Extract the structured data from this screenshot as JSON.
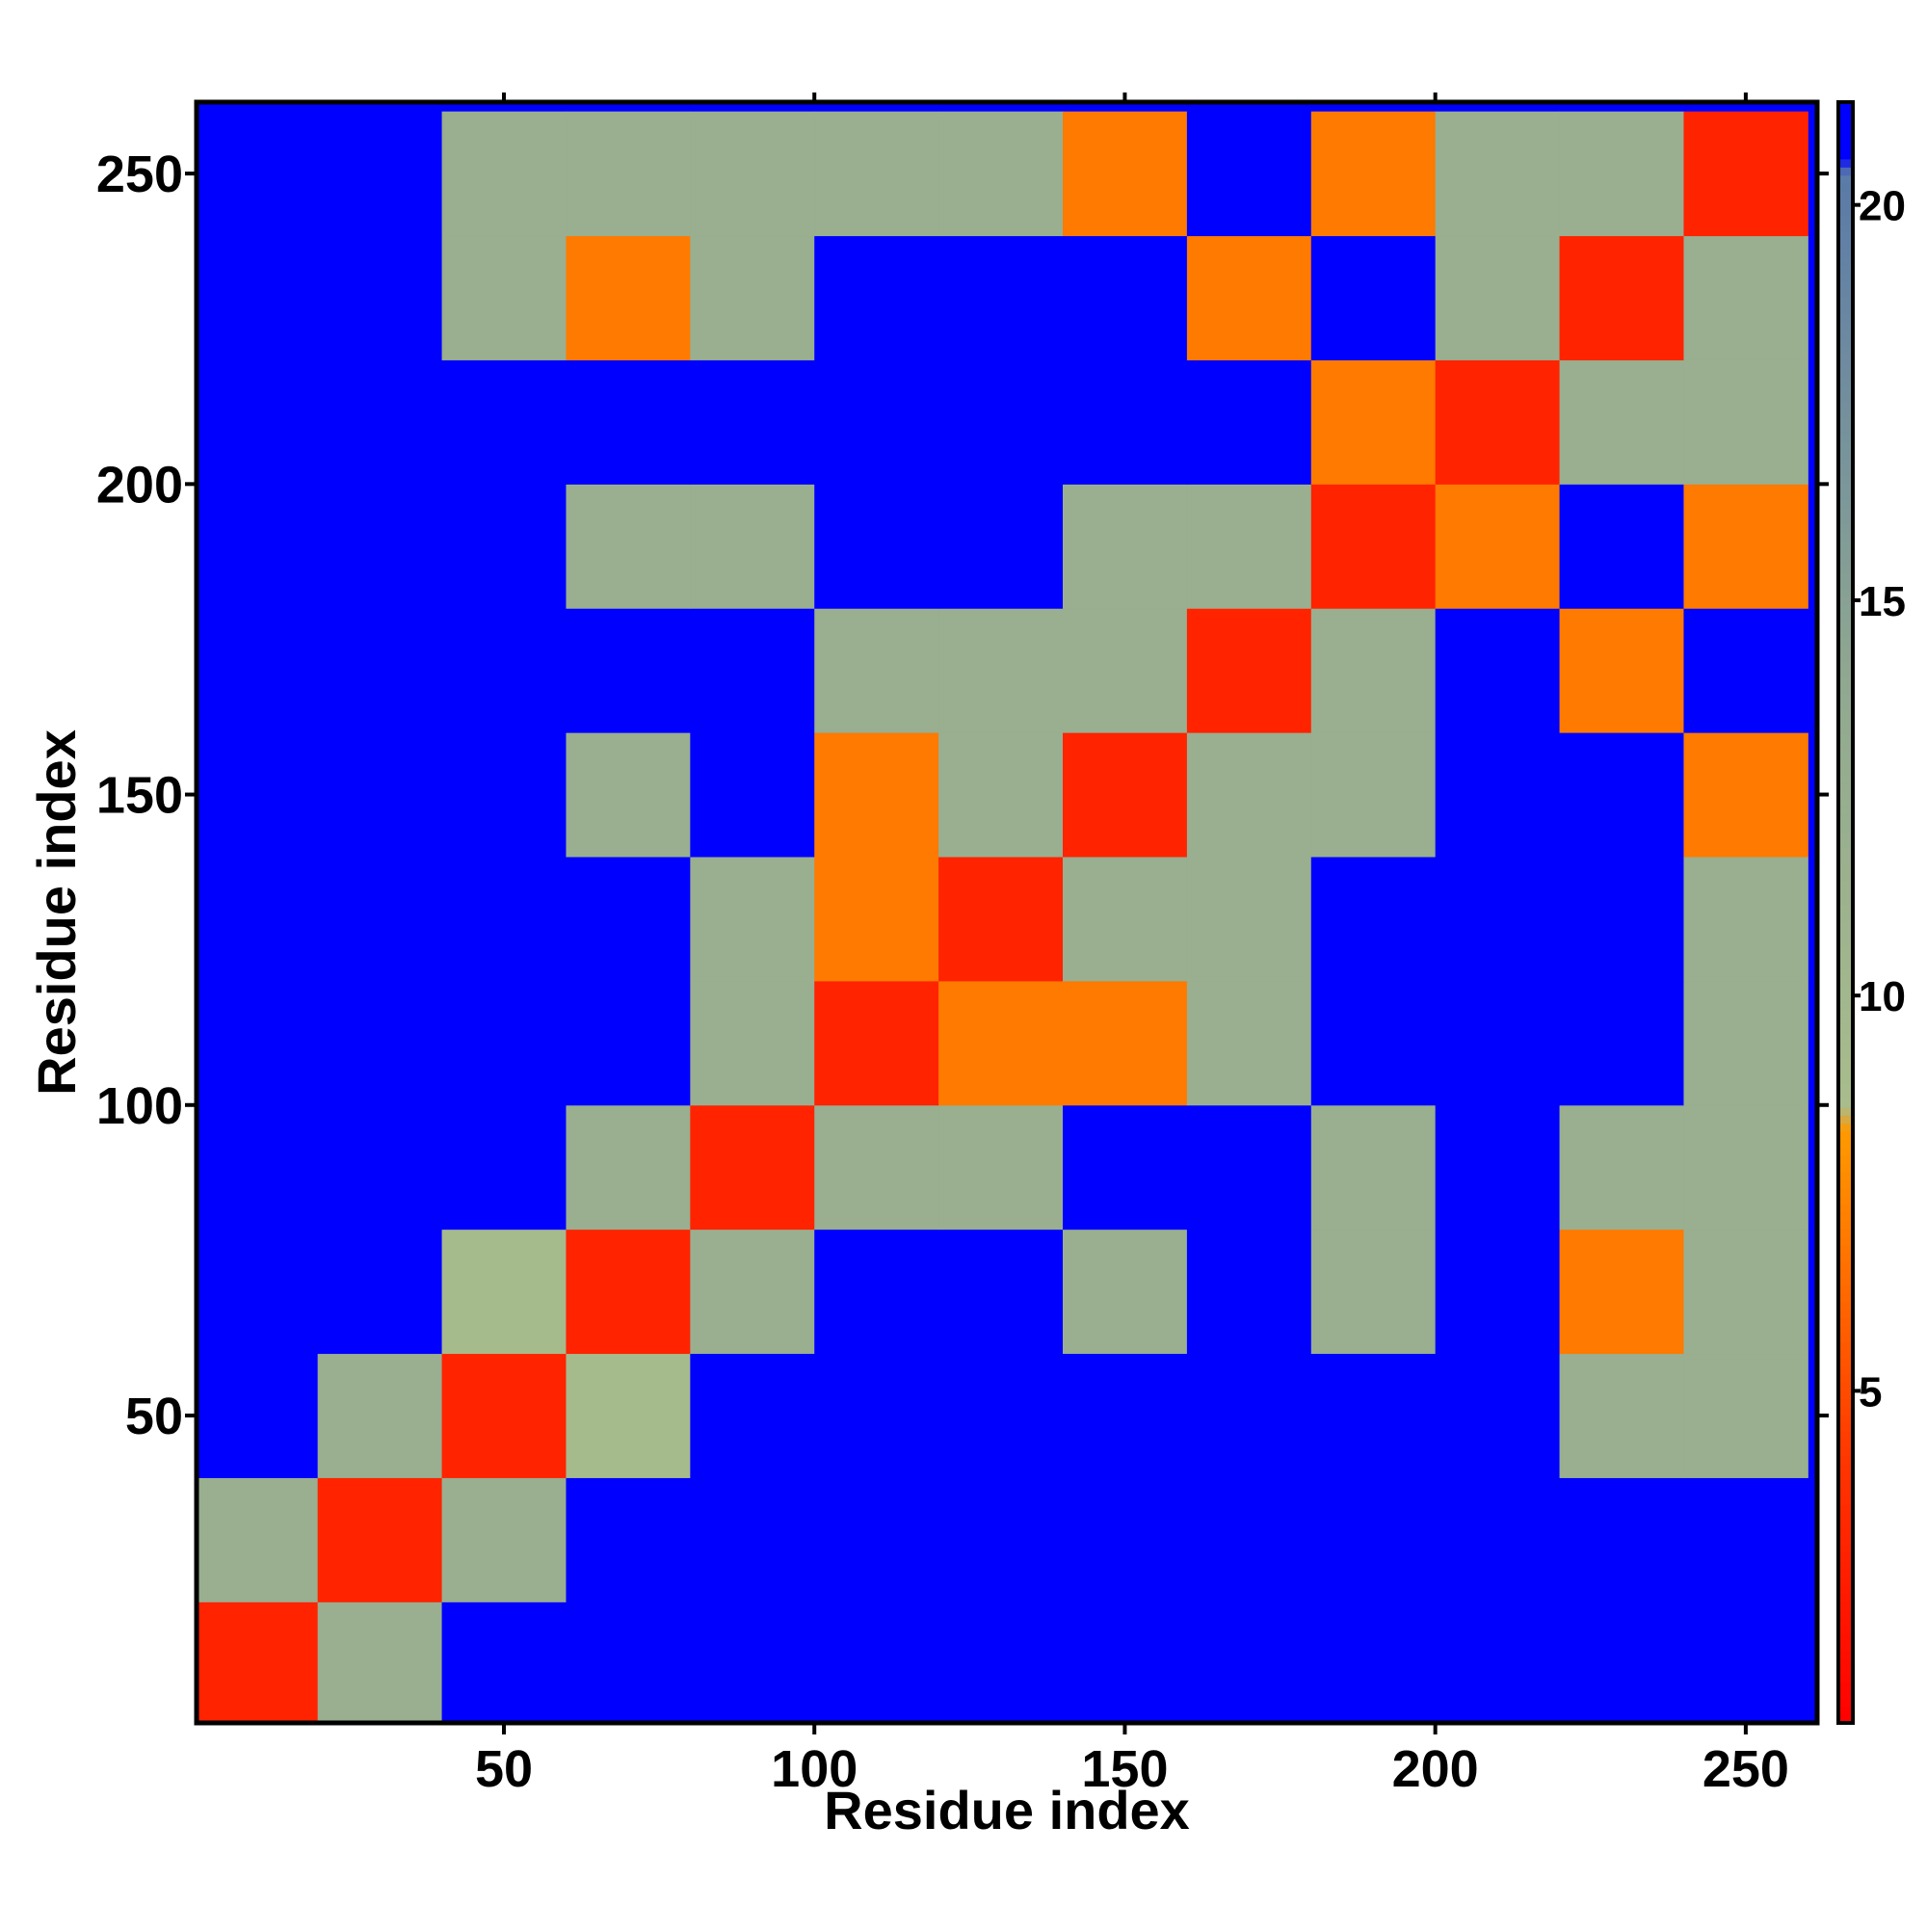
{
  "chart_data": {
    "type": "heatmap",
    "xlabel": "Residue index",
    "ylabel": "Residue index",
    "x": [
      10,
      30,
      50,
      70,
      90,
      110,
      130,
      150,
      170,
      190,
      210,
      230,
      250
    ],
    "y": [
      10,
      30,
      50,
      70,
      90,
      110,
      130,
      150,
      170,
      190,
      210,
      230,
      250
    ],
    "z": [
      [
        3,
        12,
        21,
        21,
        21,
        21,
        21,
        21,
        21,
        21,
        21,
        21,
        21
      ],
      [
        12,
        3,
        12,
        21,
        21,
        21,
        21,
        21,
        21,
        21,
        21,
        21,
        21
      ],
      [
        21,
        12,
        3,
        9,
        21,
        21,
        21,
        21,
        21,
        21,
        21,
        12,
        12
      ],
      [
        21,
        21,
        9,
        3,
        12,
        21,
        21,
        12,
        21,
        12,
        21,
        7,
        12
      ],
      [
        21,
        21,
        21,
        12,
        3,
        12,
        12,
        21,
        21,
        12,
        21,
        12,
        12
      ],
      [
        21,
        21,
        21,
        21,
        12,
        3,
        7,
        7,
        12,
        21,
        21,
        21,
        12
      ],
      [
        21,
        21,
        21,
        21,
        12,
        7,
        3,
        12,
        12,
        21,
        21,
        21,
        12
      ],
      [
        21,
        21,
        21,
        12,
        21,
        7,
        12,
        3,
        12,
        12,
        21,
        21,
        7
      ],
      [
        21,
        21,
        21,
        21,
        21,
        12,
        12,
        12,
        3,
        12,
        21,
        7,
        21
      ],
      [
        21,
        21,
        21,
        12,
        12,
        21,
        21,
        12,
        12,
        3,
        7,
        21,
        7
      ],
      [
        21,
        21,
        21,
        21,
        21,
        21,
        21,
        21,
        21,
        7,
        3,
        12,
        12
      ],
      [
        21,
        21,
        12,
        7,
        12,
        21,
        21,
        21,
        7,
        21,
        12,
        3,
        12
      ],
      [
        21,
        21,
        12,
        12,
        12,
        12,
        12,
        7,
        21,
        7,
        12,
        12,
        3
      ]
    ],
    "xlim": [
      0.5,
      261.5
    ],
    "ylim": [
      0.5,
      261.5
    ],
    "xticks": [
      50,
      100,
      150,
      200,
      250
    ],
    "yticks": [
      50,
      100,
      150,
      200,
      250
    ],
    "zlim": [
      0.8,
      21.3
    ],
    "zticks": [
      5,
      10,
      15,
      20
    ],
    "colorscale": [
      [
        0.8,
        "#ff0000"
      ],
      [
        4,
        "#ff3300"
      ],
      [
        8.3,
        "#ff9900"
      ],
      [
        8.6,
        "#a8bc8c"
      ],
      [
        14,
        "#90a890"
      ],
      [
        20.4,
        "#5a7aa8"
      ],
      [
        20.6,
        "#0000ff"
      ]
    ]
  }
}
